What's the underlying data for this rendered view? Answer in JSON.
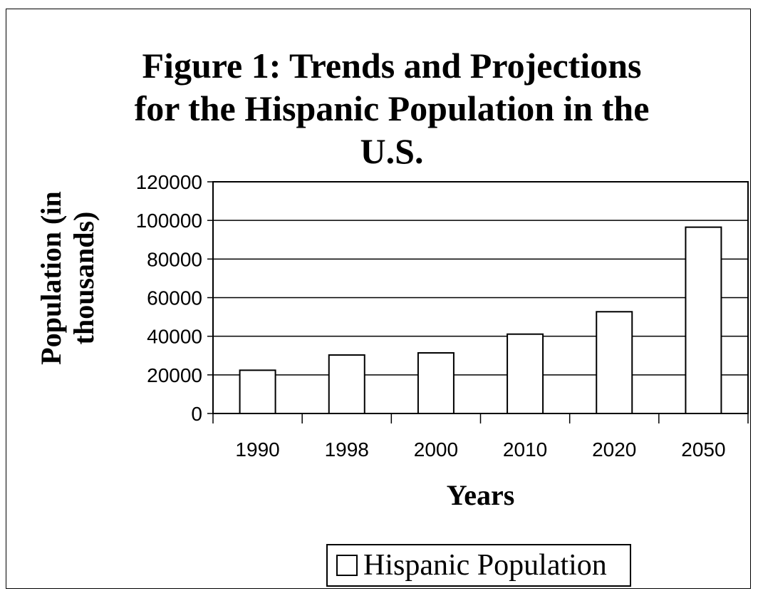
{
  "chart_data": {
    "type": "bar",
    "title_lines": [
      "Figure 1: Trends and Projections",
      "for the Hispanic Population in the",
      "U.S."
    ],
    "xlabel": "Years",
    "ylabel_lines": [
      "Population (in",
      "thousands)"
    ],
    "categories": [
      "1990",
      "1998",
      "2000",
      "2010",
      "2020",
      "2050"
    ],
    "series": [
      {
        "name": "Hispanic Population",
        "values": [
          22400,
          30300,
          31400,
          41100,
          52700,
          96500
        ]
      }
    ],
    "ylim": [
      0,
      120000
    ],
    "yticks": [
      "0",
      "20000",
      "40000",
      "60000",
      "80000",
      "100000",
      "120000"
    ],
    "grid": true,
    "legend": "bottom",
    "bar_color": "#ffffff",
    "edge_color": "#000000"
  }
}
